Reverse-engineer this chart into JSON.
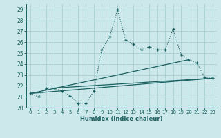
{
  "title": "",
  "xlabel": "Humidex (Indice chaleur)",
  "xlim": [
    -0.5,
    23.5
  ],
  "ylim": [
    20,
    29.5
  ],
  "yticks": [
    20,
    21,
    22,
    23,
    24,
    25,
    26,
    27,
    28,
    29
  ],
  "xticks": [
    0,
    1,
    2,
    3,
    4,
    5,
    6,
    7,
    8,
    9,
    10,
    11,
    12,
    13,
    14,
    15,
    16,
    17,
    18,
    19,
    20,
    21,
    22,
    23
  ],
  "bg_color": "#cce8ea",
  "grid_color": "#a8d0d4",
  "line_color": "#1a6060",
  "main_x": [
    0,
    1,
    2,
    3,
    4,
    5,
    6,
    7,
    8,
    9,
    10,
    11,
    12,
    13,
    14,
    15,
    16,
    17,
    18,
    19,
    20,
    21,
    22,
    23
  ],
  "main_y": [
    21.3,
    21.0,
    21.8,
    21.8,
    21.5,
    21.1,
    20.4,
    20.4,
    21.5,
    25.3,
    26.5,
    29.0,
    26.2,
    25.8,
    25.3,
    25.6,
    25.3,
    25.3,
    27.2,
    24.9,
    24.4,
    24.1,
    22.8,
    22.7
  ],
  "line1_x": [
    0,
    23
  ],
  "line1_y": [
    21.3,
    22.7
  ],
  "line2_x": [
    0,
    20
  ],
  "line2_y": [
    21.3,
    24.4
  ],
  "line3_x": [
    3,
    23
  ],
  "line3_y": [
    21.8,
    22.7
  ]
}
